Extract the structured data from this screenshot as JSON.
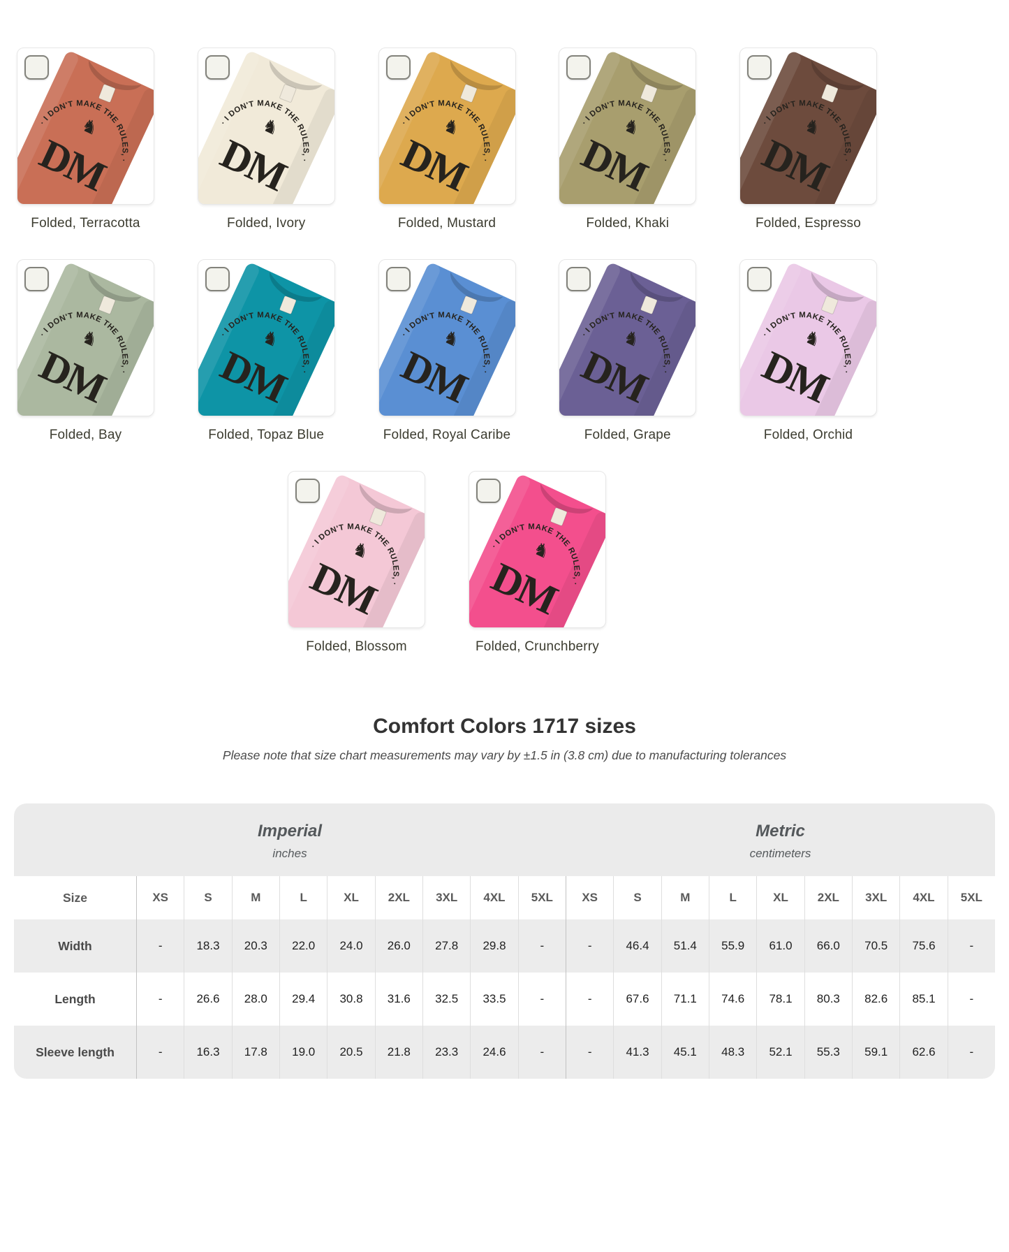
{
  "variants": {
    "design": {
      "arc_text": "· I DON'T MAKE THE RULES, ·",
      "monogram": "DM",
      "ink_color": "#26231e",
      "dragon_icon": "♞"
    },
    "rows": [
      [
        {
          "label": "Folded, Terracotta",
          "color": "#c96f56"
        },
        {
          "label": "Folded, Ivory",
          "color": "#f1ead9"
        },
        {
          "label": "Folded, Mustard",
          "color": "#dda94e"
        },
        {
          "label": "Folded, Khaki",
          "color": "#a89e6e"
        },
        {
          "label": "Folded, Espresso",
          "color": "#6d4b3d"
        }
      ],
      [
        {
          "label": "Folded, Bay",
          "color": "#abb8a0"
        },
        {
          "label": "Folded, Topaz Blue",
          "color": "#0e94a6"
        },
        {
          "label": "Folded, Royal Caribe",
          "color": "#5a8fd3"
        },
        {
          "label": "Folded, Grape",
          "color": "#6b6095"
        },
        {
          "label": "Folded, Orchid",
          "color": "#eac8e6"
        }
      ],
      [
        {
          "label": "Folded, Blossom",
          "color": "#f4c8d6"
        },
        {
          "label": "Folded, Crunchberry",
          "color": "#f34f8d"
        }
      ]
    ]
  },
  "size_chart": {
    "title": "Comfort Colors 1717 sizes",
    "subtitle": "Please note that size chart measurements may vary by ±1.5 in (3.8 cm) due to manufacturing tolerances",
    "size_label": "Size",
    "unit_groups": [
      {
        "label": "Imperial",
        "sublabel": "inches"
      },
      {
        "label": "Metric",
        "sublabel": "centimeters"
      }
    ],
    "sizes": [
      "XS",
      "S",
      "M",
      "L",
      "XL",
      "2XL",
      "3XL",
      "4XL",
      "5XL"
    ],
    "rows": [
      {
        "label": "Width",
        "imperial": [
          "-",
          "18.3",
          "20.3",
          "22.0",
          "24.0",
          "26.0",
          "27.8",
          "29.8",
          "-"
        ],
        "metric": [
          "-",
          "46.4",
          "51.4",
          "55.9",
          "61.0",
          "66.0",
          "70.5",
          "75.6",
          "-"
        ]
      },
      {
        "label": "Length",
        "imperial": [
          "-",
          "26.6",
          "28.0",
          "29.4",
          "30.8",
          "31.6",
          "32.5",
          "33.5",
          "-"
        ],
        "metric": [
          "-",
          "67.6",
          "71.1",
          "74.6",
          "78.1",
          "80.3",
          "82.6",
          "85.1",
          "-"
        ]
      },
      {
        "label": "Sleeve length",
        "imperial": [
          "-",
          "16.3",
          "17.8",
          "19.0",
          "20.5",
          "21.8",
          "23.3",
          "24.6",
          "-"
        ],
        "metric": [
          "-",
          "41.3",
          "45.1",
          "48.3",
          "52.1",
          "55.3",
          "59.1",
          "62.6",
          "-"
        ]
      }
    ]
  },
  "colors": {
    "table_band": "#ebebeb",
    "row_alt": "#ececec",
    "divider": "#dedede",
    "divider_strong": "#c2c2c2",
    "caption_text": "#3c3c30"
  }
}
